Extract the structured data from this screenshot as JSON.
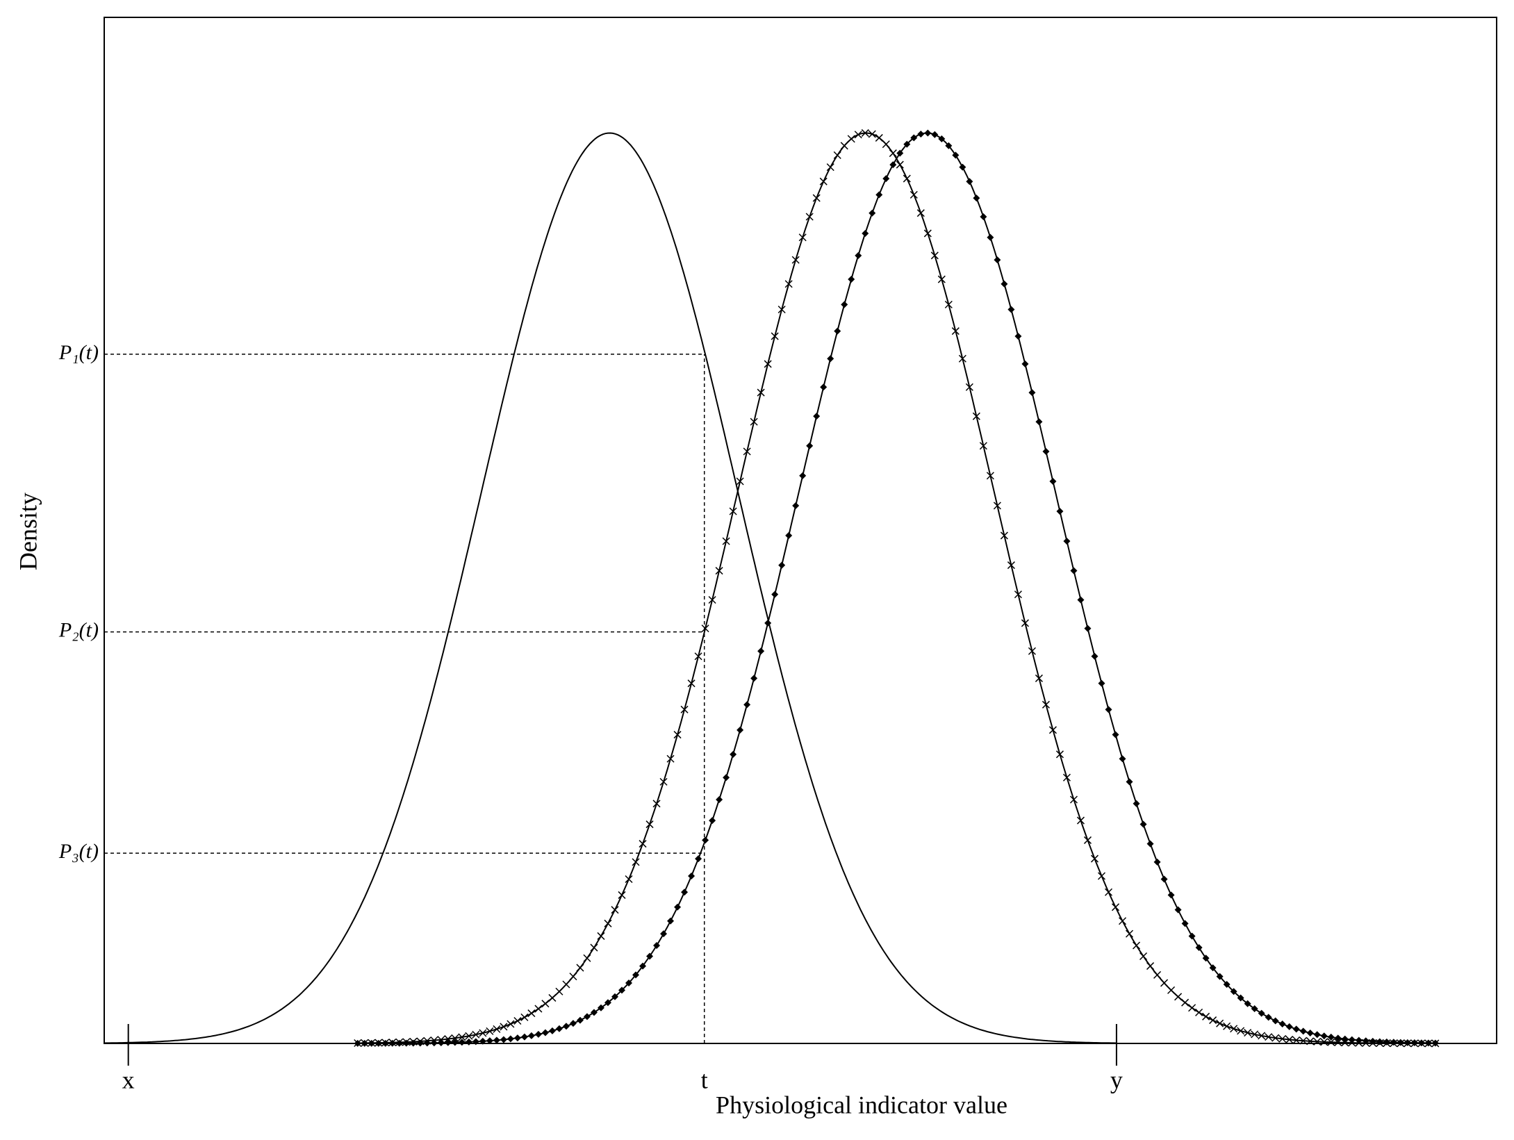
{
  "chart_data": {
    "type": "density",
    "x_label": "Physiological indicator value",
    "y_label": "Density",
    "xlim": [
      0,
      100
    ],
    "ylim": [
      0,
      1.127
    ],
    "xticks": [
      {
        "value": 1.73,
        "label": "x"
      },
      {
        "value": 43.1,
        "label": "t"
      },
      {
        "value": 72.7,
        "label": "y"
      }
    ],
    "yticks": [
      {
        "value": 0.209,
        "label": "P₃(t)"
      },
      {
        "value": 0.452,
        "label": "P₂(t)"
      },
      {
        "value": 0.757,
        "label": "P₁(t)"
      }
    ],
    "series": [
      {
        "mean": 36.3,
        "sd": 9.2,
        "peak": 1,
        "from": 0,
        "to": 72.7,
        "marker": "none",
        "color": "#000000"
      },
      {
        "mean": 54.7,
        "sd": 9.2,
        "peak": 1,
        "from": 18.2,
        "to": 95.6,
        "marker": "cross",
        "color": "#000000"
      },
      {
        "mean": 59.1,
        "sd": 9.2,
        "peak": 1,
        "from": 18.2,
        "to": 95.6,
        "marker": "diamond",
        "color": "#000000"
      }
    ]
  }
}
